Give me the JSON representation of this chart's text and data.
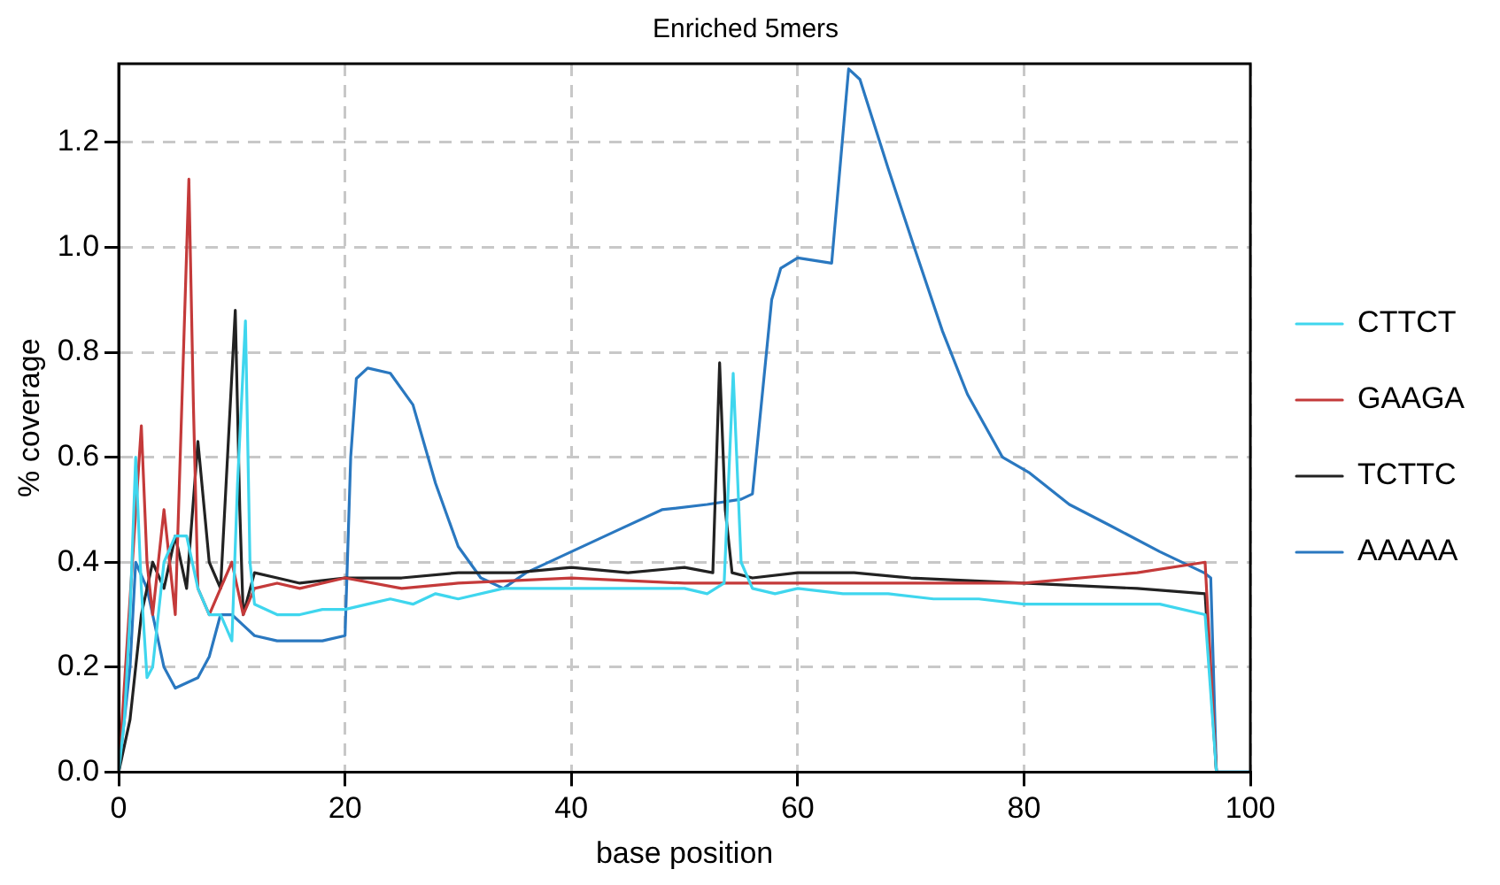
{
  "chart_data": {
    "type": "line",
    "title": "Enriched 5mers",
    "xlabel": "base position",
    "ylabel": "% coverage",
    "xlim": [
      0,
      100
    ],
    "xticks": [
      0,
      20,
      40,
      60,
      80,
      100
    ],
    "ylim": [
      0,
      1.35
    ],
    "yticks": [
      {
        "value": 0,
        "label": "0.0"
      },
      {
        "value": 0.2,
        "label": "0.2"
      },
      {
        "value": 0.4,
        "label": "0.4"
      },
      {
        "value": 0.6,
        "label": "0.6"
      },
      {
        "value": 0.8,
        "label": "0.8"
      },
      {
        "value": 1,
        "label": "1.0"
      },
      {
        "value": 1.2,
        "label": "1.2"
      }
    ],
    "grid": true,
    "legend": "right",
    "marker": "none",
    "line_style": "solid",
    "series": [
      {
        "name": "CTTCT",
        "color": "#3fd6ee",
        "x": [
          0,
          0.5,
          1,
          1.5,
          2,
          2.5,
          3,
          4,
          5,
          6,
          7,
          8,
          9,
          10,
          10.5,
          11.2,
          11.6,
          12,
          14,
          16,
          18,
          20,
          22,
          24,
          26,
          28,
          30,
          34,
          40,
          46,
          50,
          52,
          53.5,
          54.3,
          55,
          56,
          58,
          60,
          64,
          68,
          72,
          76,
          80,
          84,
          88,
          92,
          96,
          97,
          100
        ],
        "values": [
          0,
          0.1,
          0.3,
          0.6,
          0.35,
          0.18,
          0.2,
          0.4,
          0.45,
          0.45,
          0.35,
          0.3,
          0.3,
          0.25,
          0.55,
          0.86,
          0.4,
          0.32,
          0.3,
          0.3,
          0.31,
          0.31,
          0.32,
          0.33,
          0.32,
          0.34,
          0.33,
          0.35,
          0.35,
          0.35,
          0.35,
          0.34,
          0.36,
          0.76,
          0.4,
          0.35,
          0.34,
          0.35,
          0.34,
          0.34,
          0.33,
          0.33,
          0.32,
          0.32,
          0.32,
          0.32,
          0.3,
          0,
          0
        ]
      },
      {
        "name": "GAAGA",
        "color": "#c43a3a",
        "x": [
          0,
          2,
          2.5,
          3,
          4,
          5,
          6.2,
          6.6,
          7,
          8,
          9,
          10,
          11,
          12,
          14,
          16,
          20,
          25,
          30,
          40,
          50,
          60,
          70,
          80,
          90,
          96,
          97
        ],
        "values": [
          0,
          0.66,
          0.4,
          0.3,
          0.5,
          0.3,
          1.13,
          0.7,
          0.35,
          0.3,
          0.35,
          0.4,
          0.3,
          0.35,
          0.36,
          0.35,
          0.37,
          0.35,
          0.36,
          0.37,
          0.36,
          0.36,
          0.36,
          0.36,
          0.38,
          0.4,
          0
        ]
      },
      {
        "name": "TCTTC",
        "color": "#222222",
        "x": [
          0,
          1,
          2,
          3,
          4,
          5,
          6,
          7,
          8,
          9,
          10.3,
          10.7,
          11,
          12,
          14,
          16,
          20,
          25,
          30,
          35,
          40,
          45,
          50,
          52.5,
          53.1,
          53.6,
          54.2,
          56,
          60,
          65,
          70,
          80,
          90,
          96,
          97
        ],
        "values": [
          0,
          0.1,
          0.3,
          0.4,
          0.35,
          0.45,
          0.35,
          0.63,
          0.4,
          0.35,
          0.88,
          0.5,
          0.3,
          0.38,
          0.37,
          0.36,
          0.37,
          0.37,
          0.38,
          0.38,
          0.39,
          0.38,
          0.39,
          0.38,
          0.78,
          0.5,
          0.38,
          0.37,
          0.38,
          0.38,
          0.37,
          0.36,
          0.35,
          0.34,
          0
        ]
      },
      {
        "name": "AAAAA",
        "color": "#2a78c0",
        "x": [
          0,
          1,
          1.5,
          2.5,
          3,
          4,
          5,
          7,
          8,
          9,
          10,
          11,
          12,
          14,
          16,
          18,
          20,
          20.5,
          21,
          22,
          24,
          26,
          28,
          30,
          32,
          34,
          36,
          40,
          44,
          48,
          52,
          55,
          56,
          57.7,
          58.5,
          60,
          63,
          64.5,
          65.5,
          68,
          70.3,
          72.8,
          75,
          78.1,
          80.5,
          84,
          87.6,
          92,
          95.9,
          96.5,
          97,
          100
        ],
        "values": [
          0,
          0.2,
          0.4,
          0.35,
          0.3,
          0.2,
          0.16,
          0.18,
          0.22,
          0.3,
          0.3,
          0.28,
          0.26,
          0.25,
          0.25,
          0.25,
          0.26,
          0.6,
          0.75,
          0.77,
          0.76,
          0.7,
          0.55,
          0.43,
          0.37,
          0.35,
          0.38,
          0.42,
          0.46,
          0.5,
          0.51,
          0.52,
          0.53,
          0.9,
          0.96,
          0.98,
          0.97,
          1.34,
          1.32,
          1.15,
          1,
          0.84,
          0.72,
          0.6,
          0.57,
          0.51,
          0.47,
          0.42,
          0.38,
          0.37,
          0,
          0
        ]
      }
    ]
  }
}
